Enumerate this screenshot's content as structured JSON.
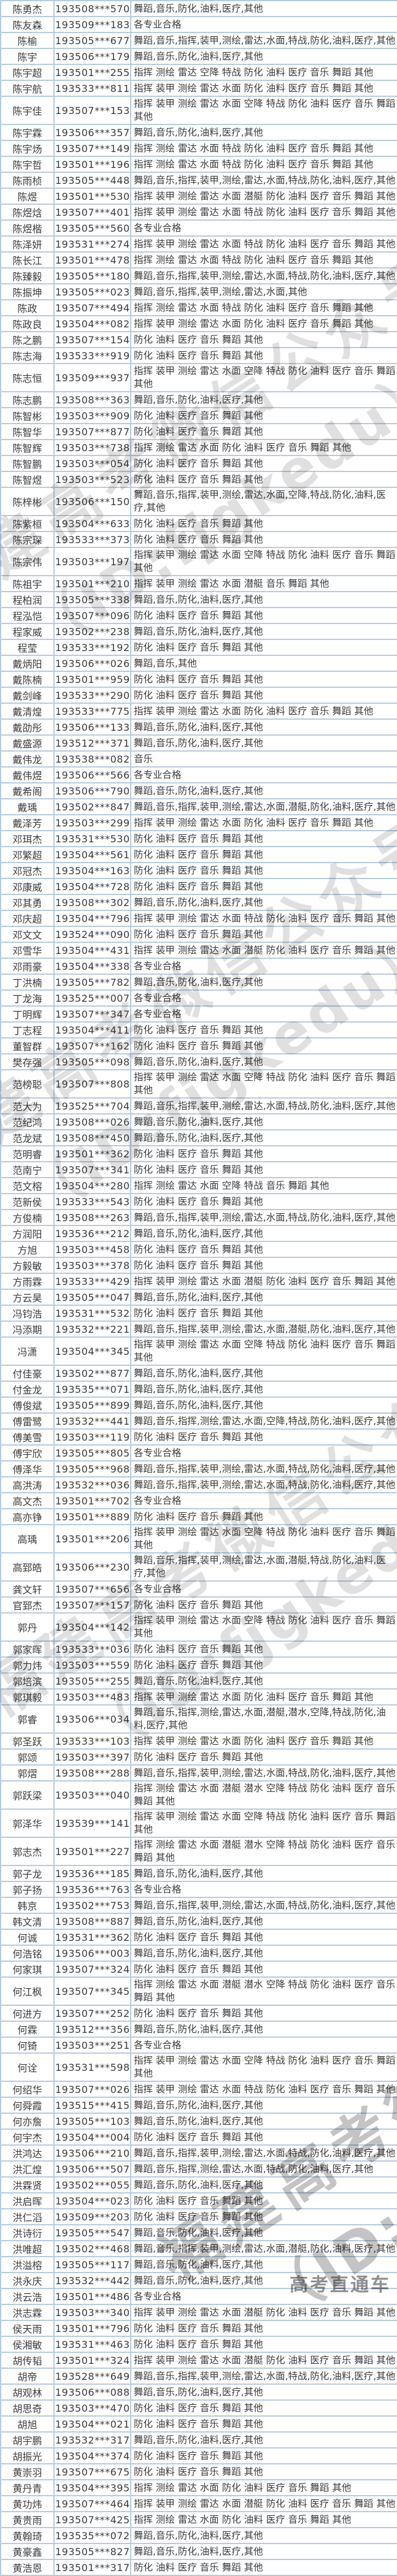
{
  "watermark": {
    "diagonal_line1": "福建高考微信公众号",
    "diagonal_line2": "（ID:fjgkedu）",
    "corner": "高考直通车"
  },
  "table": {
    "rows": [
      {
        "name": "陈勇杰",
        "exam_id": "193508***570",
        "majors": "舞蹈,音乐,防化,油料,医疗,其他"
      },
      {
        "name": "陈友森",
        "exam_id": "193509***183",
        "majors": "各专业合格"
      },
      {
        "name": "陈榆",
        "exam_id": "193505***677",
        "majors": "舞蹈,音乐,指挥,装甲,测绘,雷达,水面,特战,防化,油料,医疗,其他"
      },
      {
        "name": "陈宇",
        "exam_id": "193506***179",
        "majors": "舞蹈,音乐,防化,油料,医疗,其他"
      },
      {
        "name": "陈宇超",
        "exam_id": "193501***255",
        "majors": "指挥 测绘 雷达 空降 特战 防化 油料 医疗 音乐 舞蹈 其他"
      },
      {
        "name": "陈宇航",
        "exam_id": "193533***811",
        "majors": "指挥 装甲 测绘 雷达 水面 防化 油料 医疗 音乐 舞蹈 其他"
      },
      {
        "name": "陈宇佳",
        "exam_id": "193507***153",
        "majors": "指挥 装甲 测绘 雷达 水面 空降 特战 防化 油料 医疗 音乐 舞蹈\n其他"
      },
      {
        "name": "陈宇霖",
        "exam_id": "193506***357",
        "majors": "舞蹈,音乐,防化,油料,医疗,其他"
      },
      {
        "name": "陈宇炀",
        "exam_id": "193507***149",
        "majors": "指挥 测绘 雷达 水面 特战 防化 油料 医疗 音乐 舞蹈 其他"
      },
      {
        "name": "陈宇哲",
        "exam_id": "193501***196",
        "majors": "指挥 测绘 雷达 水面 特战 防化 油料 医疗 音乐 舞蹈 其他"
      },
      {
        "name": "陈雨桢",
        "exam_id": "193505***448",
        "majors": "舞蹈,音乐,指挥,装甲,测绘,雷达,水面,特战,防化,油料,医疗,其他"
      },
      {
        "name": "陈煜",
        "exam_id": "193501***530",
        "majors": "指挥 装甲 测绘 雷达 水面 潜艇 防化 油料 医疗 音乐 舞蹈 其他"
      },
      {
        "name": "陈煜焓",
        "exam_id": "193507***401",
        "majors": "指挥 装甲 测绘 雷达 水面 特战 防化 油料 医疗 音乐 舞蹈 其他"
      },
      {
        "name": "陈煜楷",
        "exam_id": "193505***560",
        "majors": "各专业合格"
      },
      {
        "name": "陈泽妍",
        "exam_id": "193531***274",
        "majors": "指挥 装甲 测绘 雷达 水面 特战 防化 油料 医疗 音乐 舞蹈 其他"
      },
      {
        "name": "陈长江",
        "exam_id": "193501***478",
        "majors": "指挥 测绘 雷达 水面 特战 防化 油料 医疗 音乐 舞蹈 其他"
      },
      {
        "name": "陈臻毅",
        "exam_id": "193505***180",
        "majors": "舞蹈,音乐,指挥,装甲,测绘,雷达,水面,特战,防化,油料,医疗,其他"
      },
      {
        "name": "陈振坤",
        "exam_id": "193505***023",
        "majors": "舞蹈,音乐,指挥,装甲,测绘,雷达,水面,其他"
      },
      {
        "name": "陈政",
        "exam_id": "193507***494",
        "majors": "指挥 测绘 雷达 水面 特战 防化 油料 医疗 音乐 舞蹈 其他"
      },
      {
        "name": "陈政良",
        "exam_id": "193504***082",
        "majors": "指挥 装甲 测绘 雷达 水面 防化 油料 医疗 音乐 舞蹈 其他"
      },
      {
        "name": "陈之鹏",
        "exam_id": "193507***154",
        "majors": "防化 油料 医疗 音乐 舞蹈 其他"
      },
      {
        "name": "陈志海",
        "exam_id": "193533***919",
        "majors": "防化 油料 医疗 音乐 舞蹈 其他"
      },
      {
        "name": "陈志恒",
        "exam_id": "193509***937",
        "majors": "指挥 装甲 测绘 雷达 水面 空降 特战 防化 油料 医疗 音乐 舞蹈\n其他"
      },
      {
        "name": "陈志鹏",
        "exam_id": "193508***363",
        "majors": "舞蹈,音乐,防化,油料,医疗,其他"
      },
      {
        "name": "陈智彬",
        "exam_id": "193503***909",
        "majors": "防化 油料 医疗 音乐 舞蹈 其他"
      },
      {
        "name": "陈智华",
        "exam_id": "193507***877",
        "majors": "防化 油料 医疗 音乐 舞蹈 其他"
      },
      {
        "name": "陈智辉",
        "exam_id": "193503***738",
        "majors": "指挥 测绘 雷达 水面 防化 油料 医疗 音乐 舞蹈 其他"
      },
      {
        "name": "陈智鹏",
        "exam_id": "193503***054",
        "majors": "防化 油料 医疗 音乐 舞蹈 其他"
      },
      {
        "name": "陈智煜",
        "exam_id": "193503***523",
        "majors": "防化 油料 医疗 音乐 舞蹈 其他"
      },
      {
        "name": "陈梓彬",
        "exam_id": "193506***150",
        "majors": "舞蹈,音乐,指挥,装甲,测绘,雷达,水面,空降,特战,防化,油料,医\n疗,其他"
      },
      {
        "name": "陈紫桓",
        "exam_id": "193504***633",
        "majors": "防化 油料 医疗 音乐 舞蹈 其他"
      },
      {
        "name": "陈宗琛",
        "exam_id": "193533***373",
        "majors": "防化 油料 医疗 音乐 舞蹈 其他"
      },
      {
        "name": "陈宗伟",
        "exam_id": "193503***197",
        "majors": "指挥 装甲 测绘 雷达 水面 空降 特战 防化 油料 医疗 音乐 舞蹈\n其他"
      },
      {
        "name": "陈祖宇",
        "exam_id": "193501***210",
        "majors": "指挥 装甲 测绘 雷达 水面 潜艇 音乐 舞蹈 其他"
      },
      {
        "name": "程柏润",
        "exam_id": "193505***338",
        "majors": "舞蹈,音乐,防化,油料,医疗,其他"
      },
      {
        "name": "程泓恺",
        "exam_id": "193507***096",
        "majors": "防化 油料 医疗 音乐 舞蹈 其他"
      },
      {
        "name": "程家威",
        "exam_id": "193502***238",
        "majors": "舞蹈,音乐,防化,油料,医疗,其他"
      },
      {
        "name": "程莹",
        "exam_id": "193533***192",
        "majors": "防化 油料 医疗 音乐 舞蹈 其他"
      },
      {
        "name": "戴炳阳",
        "exam_id": "193506***026",
        "majors": "舞蹈,音乐,其他"
      },
      {
        "name": "戴陈楠",
        "exam_id": "193501***959",
        "majors": "防化 油料 医疗 音乐 舞蹈 其他"
      },
      {
        "name": "戴剑峰",
        "exam_id": "193533***290",
        "majors": "防化 油料 医疗 音乐 舞蹈 其他"
      },
      {
        "name": "戴清煌",
        "exam_id": "193533***775",
        "majors": "指挥 装甲 测绘 雷达 水面 防化 油料 医疗 音乐 舞蹈 其他"
      },
      {
        "name": "戴劭彤",
        "exam_id": "193506***133",
        "majors": "舞蹈,音乐,防化,油料,医疗,其他"
      },
      {
        "name": "戴盛源",
        "exam_id": "193512***371",
        "majors": "舞蹈,音乐,防化,油料,医疗,其他"
      },
      {
        "name": "戴伟龙",
        "exam_id": "193538***082",
        "majors": "音乐"
      },
      {
        "name": "戴伟煜",
        "exam_id": "193506***566",
        "majors": "各专业合格"
      },
      {
        "name": "戴希阁",
        "exam_id": "193506***790",
        "majors": "舞蹈,音乐,防化,油料,医疗,其他"
      },
      {
        "name": "戴瑀",
        "exam_id": "193502***847",
        "majors": "舞蹈,音乐,指挥,装甲,测绘,雷达,水面,潜艇,防化,油料,医疗,其他"
      },
      {
        "name": "戴泽芳",
        "exam_id": "193503***299",
        "majors": "指挥 装甲 测绘 雷达 水面 防化 油料 医疗 音乐 舞蹈 其他"
      },
      {
        "name": "邓珥杰",
        "exam_id": "193531***530",
        "majors": "防化 油料 医疗 音乐 舞蹈 其他"
      },
      {
        "name": "邓繁超",
        "exam_id": "193504***561",
        "majors": "防化 油料 医疗 音乐 舞蹈 其他"
      },
      {
        "name": "邓冠杰",
        "exam_id": "193504***163",
        "majors": "防化 油料 医疗 音乐 舞蹈 其他"
      },
      {
        "name": "邓康威",
        "exam_id": "193504***728",
        "majors": "防化 油料 医疗 音乐 舞蹈 其他"
      },
      {
        "name": "邓其勇",
        "exam_id": "193508***302",
        "majors": "舞蹈,音乐,防化,油料,医疗,其他"
      },
      {
        "name": "邓庆超",
        "exam_id": "193504***796",
        "majors": "指挥 装甲 测绘 雷达 水面 特战 防化 油料 医疗 音乐 舞蹈 其他"
      },
      {
        "name": "邓文文",
        "exam_id": "193524***090",
        "majors": "防化 油料 医疗 音乐 舞蹈 其他"
      },
      {
        "name": "邓雪华",
        "exam_id": "193504***431",
        "majors": "指挥 装甲 测绘 雷达 水面 潜艇 防化 油料 医疗 音乐 舞蹈 其他"
      },
      {
        "name": "邓雨豪",
        "exam_id": "193504***338",
        "majors": "各专业合格"
      },
      {
        "name": "丁洪楠",
        "exam_id": "193505***782",
        "majors": "舞蹈,音乐,防化,油料,医疗,其他"
      },
      {
        "name": "丁龙海",
        "exam_id": "193525***007",
        "majors": "各专业合格"
      },
      {
        "name": "丁明辉",
        "exam_id": "193507***347",
        "majors": "各专业合格"
      },
      {
        "name": "丁志程",
        "exam_id": "193504***411",
        "majors": "防化 油料 医疗 音乐 舞蹈 其他"
      },
      {
        "name": "董智群",
        "exam_id": "193507***162",
        "majors": "防化 油料 医疗 音乐 舞蹈 其他"
      },
      {
        "name": "樊存强",
        "exam_id": "193505***098",
        "majors": "舞蹈,音乐,防化,油料,医疗,其他"
      },
      {
        "name": "范榜聪",
        "exam_id": "193507***808",
        "majors": "指挥 装甲 测绘 雷达 水面 空降 特战 防化 油料 医疗 音乐 舞蹈\n其他"
      },
      {
        "name": "范大为",
        "exam_id": "193525***704",
        "majors": "舞蹈,音乐,指挥,装甲,测绘,雷达,水面,特战,防化,油料,医疗,其他"
      },
      {
        "name": "范纪鸿",
        "exam_id": "193508***026",
        "majors": "舞蹈,音乐,防化,油料,医疗,其他"
      },
      {
        "name": "范龙斌",
        "exam_id": "193508***450",
        "majors": "舞蹈,音乐,防化,油料,医疗,其他"
      },
      {
        "name": "范明睿",
        "exam_id": "193501***362",
        "majors": "防化 油料 医疗 音乐 舞蹈 其他"
      },
      {
        "name": "范南宁",
        "exam_id": "193507***341",
        "majors": "防化 油料 医疗 音乐 舞蹈 其他"
      },
      {
        "name": "范文榕",
        "exam_id": "193504***280",
        "majors": "指挥 测绘 雷达 水面 空降 特战 音乐 舞蹈 其他"
      },
      {
        "name": "范新侯",
        "exam_id": "193533***543",
        "majors": "防化 油料 医疗 音乐 舞蹈 其他"
      },
      {
        "name": "方俊楠",
        "exam_id": "193508***263",
        "majors": "舞蹈,音乐,指挥,装甲,测绘,雷达,水面,特战,防化,油料,医疗,其他"
      },
      {
        "name": "方润阳",
        "exam_id": "193536***212",
        "majors": "舞蹈,音乐,防化,油料,医疗,其他"
      },
      {
        "name": "方旭",
        "exam_id": "193503***458",
        "majors": "防化 油料 医疗 音乐 舞蹈 其他"
      },
      {
        "name": "方毅敏",
        "exam_id": "193503***378",
        "majors": "防化 油料 医疗 音乐 舞蹈 其他"
      },
      {
        "name": "方雨霖",
        "exam_id": "193533***429",
        "majors": "指挥 装甲 测绘 雷达 水面 潜艇 防化 油料 医疗 音乐 舞蹈 其他"
      },
      {
        "name": "方云昊",
        "exam_id": "193505***047",
        "majors": "舞蹈,音乐,防化,油料,医疗,其他"
      },
      {
        "name": "冯钧浩",
        "exam_id": "193531***532",
        "majors": "防化 油料 医疗 音乐 舞蹈 其他"
      },
      {
        "name": "冯添期",
        "exam_id": "193532***221",
        "majors": "舞蹈,音乐,指挥,装甲,测绘,雷达,水面,潜艇,防化,油料,医疗,其他"
      },
      {
        "name": "冯潇",
        "exam_id": "193504***345",
        "majors": "指挥 装甲 测绘 雷达 水面 空降 特战 防化 油料 医疗 音乐 舞蹈\n其他"
      },
      {
        "name": "付佳豪",
        "exam_id": "193502***877",
        "majors": "舞蹈,音乐,防化,油料,医疗,其他"
      },
      {
        "name": "付金龙",
        "exam_id": "193535***071",
        "majors": "舞蹈,音乐,防化,油料,医疗,其他"
      },
      {
        "name": "傅俊斌",
        "exam_id": "193505***899",
        "majors": "舞蹈,音乐,防化,油料,医疗,其他"
      },
      {
        "name": "傅雷鹭",
        "exam_id": "193532***441",
        "majors": "舞蹈,音乐,指挥,测绘,雷达,水面,空降,特战,防化,油料,医疗,其他"
      },
      {
        "name": "傅美雪",
        "exam_id": "193503***119",
        "majors": "防化 油料 医疗 音乐 舞蹈 其他"
      },
      {
        "name": "傅宇欣",
        "exam_id": "193505***805",
        "majors": "各专业合格"
      },
      {
        "name": "傅泽华",
        "exam_id": "193505***968",
        "majors": "舞蹈,音乐,指挥,装甲,测绘,雷达,水面,特战,防化,油料,医疗,其他"
      },
      {
        "name": "高洪涛",
        "exam_id": "193532***036",
        "majors": "舞蹈,音乐,指挥,装甲,测绘,雷达,水面,特战,防化,油料,医疗,其他"
      },
      {
        "name": "高文杰",
        "exam_id": "193501***702",
        "majors": "各专业合格"
      },
      {
        "name": "高亦铮",
        "exam_id": "193501***889",
        "majors": "防化 油料 医疗 音乐 舞蹈 其他"
      },
      {
        "name": "高瑀",
        "exam_id": "193501***206",
        "majors": "指挥 装甲 测绘 雷达 水面 空降 特战 防化 油料 医疗 音乐 舞蹈\n其他"
      },
      {
        "name": "高郅皓",
        "exam_id": "193506***230",
        "majors": "舞蹈,音乐,指挥,装甲,测绘,雷达,水面,潜艇,特战,防化,油料,医\n疗,其他"
      },
      {
        "name": "龚文轩",
        "exam_id": "193507***656",
        "majors": "各专业合格"
      },
      {
        "name": "官郅杰",
        "exam_id": "193507***157",
        "majors": "防化 油料 医疗 音乐 舞蹈 其他"
      },
      {
        "name": "郭丹",
        "exam_id": "193504***142",
        "majors": "指挥 装甲 测绘 雷达 水面 空降 特战 防化 油料 医疗 音乐 舞蹈\n其他"
      },
      {
        "name": "郭家晖",
        "exam_id": "193533***036",
        "majors": "防化 油料 医疗 音乐 舞蹈 其他"
      },
      {
        "name": "郭力炜",
        "exam_id": "193503***559",
        "majors": "防化 油料 医疗 音乐 舞蹈 其他"
      },
      {
        "name": "郭培滨",
        "exam_id": "193505***255",
        "majors": "舞蹈,音乐,防化,油料,医疗,其他"
      },
      {
        "name": "郭琪毅",
        "exam_id": "193503***483",
        "majors": "指挥 装甲 测绘 雷达 水面 防化 油料 医疗 音乐 舞蹈 其他"
      },
      {
        "name": "郭睿",
        "exam_id": "193506***034",
        "majors": "舞蹈,音乐,指挥,测绘,雷达,水面,潜艇,潜水,空降,特战,防化,油\n料,医疗,其他"
      },
      {
        "name": "郭圣跃",
        "exam_id": "193533***103",
        "majors": "指挥 装甲 测绘 雷达 水面 防化 油料 医疗 音乐 舞蹈 其他"
      },
      {
        "name": "郭颂",
        "exam_id": "193503***397",
        "majors": "防化 油料 医疗 音乐 舞蹈 其他"
      },
      {
        "name": "郭熠",
        "exam_id": "193508***288",
        "majors": "舞蹈,音乐,指挥,装甲,测绘,雷达,水面,特战,防化,油料,医疗,其他"
      },
      {
        "name": "郭跃梁",
        "exam_id": "193503***040",
        "majors": "指挥 测绘 雷达 水面 潜艇 潜水 空降 特战 防化 油料 医疗 音乐\n舞蹈 其他"
      },
      {
        "name": "郭泽华",
        "exam_id": "193539***141",
        "majors": "指挥 装甲 测绘 雷达 水面 空降 特战 防化 油料 医疗 音乐 舞蹈\n其他"
      },
      {
        "name": "郭志杰",
        "exam_id": "193501***227",
        "majors": "指挥 测绘 雷达 水面 潜艇 潜水 空降 特战 防化 油料 医疗 音乐\n舞蹈 其他"
      },
      {
        "name": "郭子龙",
        "exam_id": "193536***185",
        "majors": "舞蹈,音乐,防化,油料,医疗,其他"
      },
      {
        "name": "郭子扬",
        "exam_id": "193536***763",
        "majors": "各专业合格"
      },
      {
        "name": "韩京",
        "exam_id": "193502***753",
        "majors": "舞蹈,音乐,指挥,装甲,测绘,雷达,水面,特战,防化,油料,医疗,其他"
      },
      {
        "name": "韩文清",
        "exam_id": "193508***887",
        "majors": "舞蹈,音乐,防化,油料,医疗,其他"
      },
      {
        "name": "何诚",
        "exam_id": "193531***362",
        "majors": "防化 油料 医疗 音乐 舞蹈 其他"
      },
      {
        "name": "何浩铭",
        "exam_id": "193506***003",
        "majors": "舞蹈,音乐,防化,油料,医疗,其他"
      },
      {
        "name": "何家琪",
        "exam_id": "193507***324",
        "majors": "防化 油料 医疗 音乐 舞蹈 其他"
      },
      {
        "name": "何江枫",
        "exam_id": "193507***345",
        "majors": "指挥 测绘 雷达 水面 潜艇 潜水 空降 特战 防化 油料 医疗 音乐\n舞蹈 其他"
      },
      {
        "name": "何进方",
        "exam_id": "193507***252",
        "majors": "防化 油料 医疗 音乐 舞蹈 其他"
      },
      {
        "name": "何霖",
        "exam_id": "193512***356",
        "majors": "舞蹈,音乐,防化,油料,医疗,其他"
      },
      {
        "name": "何锜",
        "exam_id": "193503***251",
        "majors": "各专业合格"
      },
      {
        "name": "何诠",
        "exam_id": "193531***598",
        "majors": "指挥 装甲 测绘 雷达 水面 空降 特战 防化 油料 医疗 音乐 舞蹈\n其他"
      },
      {
        "name": "何绍华",
        "exam_id": "193507***026",
        "majors": "指挥 装甲 测绘 雷达 水面 特战 防化 油料 医疗 音乐 舞蹈 其他"
      },
      {
        "name": "何舜霞",
        "exam_id": "193515***415",
        "majors": "舞蹈,音乐,防化,油料,医疗,其他"
      },
      {
        "name": "何亦詹",
        "exam_id": "193505***103",
        "majors": "舞蹈,音乐,防化,油料,医疗,其他"
      },
      {
        "name": "何宇杰",
        "exam_id": "193504***004",
        "majors": "防化 油料 医疗 音乐 舞蹈 其他"
      },
      {
        "name": "洪鸿达",
        "exam_id": "193506***210",
        "majors": "舞蹈,音乐,指挥,装甲,测绘,雷达,水面,特战,防化,油料,医疗,其他"
      },
      {
        "name": "洪汇煌",
        "exam_id": "193506***507",
        "majors": "舞蹈,音乐,指挥,测绘,雷达,水面,特战,防化,油料,医疗,其他"
      },
      {
        "name": "洪霖贤",
        "exam_id": "193502***055",
        "majors": "舞蹈,音乐,防化,油料,医疗,其他"
      },
      {
        "name": "洪启晖",
        "exam_id": "193504***023",
        "majors": "防化 油料 医疗 音乐 舞蹈 其他"
      },
      {
        "name": "洪仁滔",
        "exam_id": "193509***203",
        "majors": "防化 油料 医疗 音乐 舞蹈 其他"
      },
      {
        "name": "洪诗衍",
        "exam_id": "193505***547",
        "majors": "舞蹈,音乐,防化,油料,医疗,其他"
      },
      {
        "name": "洪唯超",
        "exam_id": "193502***468",
        "majors": "舞蹈,音乐,指挥,装甲,测绘,雷达,水面,潜艇,防化,油料,医疗,其他"
      },
      {
        "name": "洪溢榕",
        "exam_id": "193505***117",
        "majors": "舞蹈,音乐,防化,油料,医疗,其他"
      },
      {
        "name": "洪永庆",
        "exam_id": "193532***442",
        "majors": "舞蹈,音乐,防化,油料,医疗,其他"
      },
      {
        "name": "洪云浩",
        "exam_id": "193501***486",
        "majors": "各专业合格"
      },
      {
        "name": "洪志霖",
        "exam_id": "193503***340",
        "majors": "指挥 装甲 测绘 雷达 水面 潜艇 防化 油料 医疗 音乐 舞蹈 其他"
      },
      {
        "name": "侯天雨",
        "exam_id": "193501***796",
        "majors": "防化 油料 医疗 音乐 舞蹈 其他"
      },
      {
        "name": "侯湘敏",
        "exam_id": "193531***463",
        "majors": "防化 油料 医疗 音乐 舞蹈 其他"
      },
      {
        "name": "胡传韬",
        "exam_id": "193501***324",
        "majors": "指挥 装甲 测绘 雷达 水面 潜艇 防化 油料 医疗 音乐 舞蹈 其他"
      },
      {
        "name": "胡帝",
        "exam_id": "193528***649",
        "majors": "舞蹈,音乐,指挥,装甲,测绘,雷达,水面,特战,防化,油料,医疗,其他"
      },
      {
        "name": "胡观林",
        "exam_id": "193506***088",
        "majors": "舞蹈,音乐,防化,油料,医疗,其他"
      },
      {
        "name": "胡思奇",
        "exam_id": "193503***470",
        "majors": "防化 油料 医疗 音乐 舞蹈 其他"
      },
      {
        "name": "胡旭",
        "exam_id": "193504***021",
        "majors": "防化 油料 医疗 音乐 舞蹈 其他"
      },
      {
        "name": "胡宇鹏",
        "exam_id": "193532***317",
        "majors": "舞蹈,音乐,防化,油料,医疗,其他"
      },
      {
        "name": "胡振光",
        "exam_id": "193504***374",
        "majors": "防化 油料 医疗 音乐 舞蹈 其他"
      },
      {
        "name": "黄崇羽",
        "exam_id": "193507***675",
        "majors": "防化 油料 医疗 音乐 舞蹈 其他"
      },
      {
        "name": "黄丹青",
        "exam_id": "193504***395",
        "majors": "指挥 测绘 雷达 水面 防化 油料 医疗 音乐 舞蹈 其他"
      },
      {
        "name": "黄功炜",
        "exam_id": "193507***464",
        "majors": "指挥 装甲 测绘 雷达 水面 潜艇 防化 油料 医疗 音乐 舞蹈 其他"
      },
      {
        "name": "黄贵雨",
        "exam_id": "193507***425",
        "majors": "指挥 测绘 雷达 水面 防化 油料 医疗 音乐 舞蹈 其他"
      },
      {
        "name": "黄翰琦",
        "exam_id": "193535***072",
        "majors": "舞蹈,音乐,防化,油料,医疗,其他"
      },
      {
        "name": "黄豪鑫",
        "exam_id": "193505***827",
        "majors": "舞蹈,音乐,防化,油料,医疗,其他"
      },
      {
        "name": "黄浩恩",
        "exam_id": "193501***317",
        "majors": "防化 油料 医疗 音乐 舞蹈 其他"
      }
    ]
  }
}
